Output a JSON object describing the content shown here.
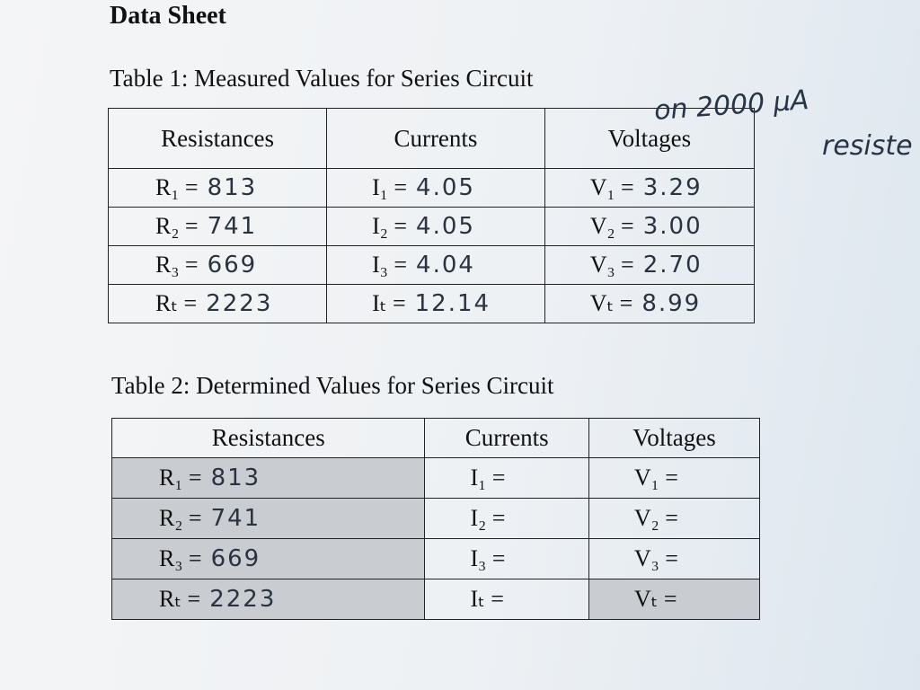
{
  "title": "Data Sheet",
  "tables": [
    {
      "caption": "Table 1: Measured Values for Series Circuit",
      "headers": [
        "Resistances",
        "Currents",
        "Voltages"
      ],
      "rows": [
        [
          {
            "label": "R₁ =",
            "value": "813"
          },
          {
            "label": "I₁ =",
            "value": "4.05"
          },
          {
            "label": "V₁ =",
            "value": "3.29"
          }
        ],
        [
          {
            "label": "R₂ =",
            "value": "741"
          },
          {
            "label": "I₂ =",
            "value": "4.05"
          },
          {
            "label": "V₂ =",
            "value": "3.00"
          }
        ],
        [
          {
            "label": "R₃ =",
            "value": "669"
          },
          {
            "label": "I₃ =",
            "value": "4.04"
          },
          {
            "label": "V₃ =",
            "value": "2.70"
          }
        ],
        [
          {
            "label": "Rₜ =",
            "value": "2223"
          },
          {
            "label": "Iₜ =",
            "value": "12.14"
          },
          {
            "label": "Vₜ =",
            "value": "8.99"
          }
        ]
      ]
    },
    {
      "caption": "Table 2: Determined Values for Series Circuit",
      "headers": [
        "Resistances",
        "Currents",
        "Voltages"
      ],
      "rows": [
        [
          {
            "label": "R₁ =",
            "value": "813"
          },
          {
            "label": "I₁ ="
          },
          {
            "label": "V₁ ="
          }
        ],
        [
          {
            "label": "R₂ =",
            "value": "741"
          },
          {
            "label": "I₂ ="
          },
          {
            "label": "V₂ ="
          }
        ],
        [
          {
            "label": "R₃ =",
            "value": "669"
          },
          {
            "label": "I₃ ="
          },
          {
            "label": "V₃ ="
          }
        ],
        [
          {
            "label": "Rₜ =",
            "value": "2223"
          },
          {
            "label": "Iₜ ="
          },
          {
            "label": "Vₜ ="
          }
        ]
      ]
    }
  ],
  "notes": [
    "on 2000 μA",
    "resiste"
  ]
}
